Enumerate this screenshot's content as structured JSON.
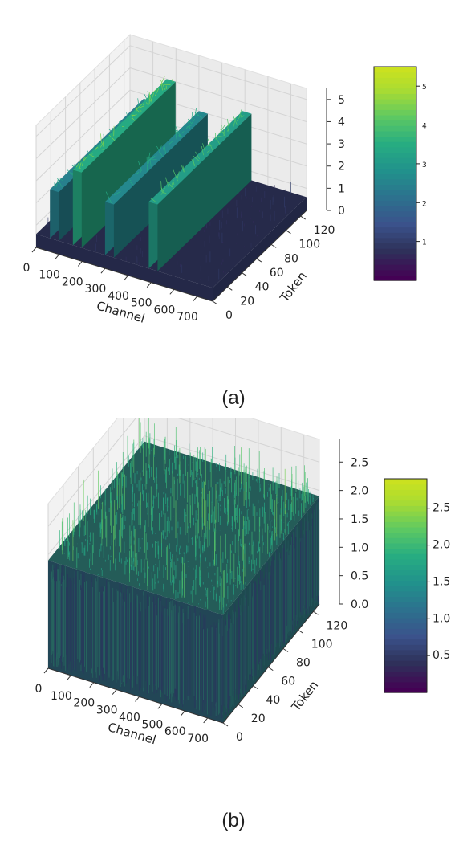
{
  "chart_data": [
    {
      "type": "surface3d",
      "caption": "(a)",
      "xlabel": "Channel",
      "ylabel": "Token",
      "x_ticks": [
        "0",
        "100",
        "200",
        "300",
        "400",
        "500",
        "600",
        "700"
      ],
      "y_ticks": [
        "0",
        "20",
        "40",
        "60",
        "80",
        "100",
        "120"
      ],
      "z_ticks": [
        "0",
        "1",
        "2",
        "3",
        "4",
        "5"
      ],
      "colorbar_ticks": [
        "1",
        "2",
        "3",
        "4",
        "5"
      ],
      "xlim": [
        0,
        768
      ],
      "ylim": [
        0,
        128
      ],
      "zlim": [
        0,
        5.5
      ],
      "colorbar_range": [
        0,
        5.5
      ],
      "colormap": "viridis",
      "base_level": 0.6,
      "outlier_channels": [
        {
          "channel": 60,
          "level": 2.8
        },
        {
          "channel": 160,
          "level": 4.0
        },
        {
          "channel": 300,
          "level": 3.0
        },
        {
          "channel": 490,
          "level": 3.6
        }
      ]
    },
    {
      "type": "surface3d",
      "caption": "(b)",
      "xlabel": "Channel",
      "ylabel": "Token",
      "x_ticks": [
        "0",
        "100",
        "200",
        "300",
        "400",
        "500",
        "600",
        "700"
      ],
      "y_ticks": [
        "0",
        "20",
        "40",
        "60",
        "80",
        "100",
        "120"
      ],
      "z_ticks": [
        "0.0",
        "0.5",
        "1.0",
        "1.5",
        "2.0",
        "2.5"
      ],
      "colorbar_ticks": [
        "0.5",
        "1.0",
        "1.5",
        "2.0",
        "2.5"
      ],
      "xlim": [
        0,
        768
      ],
      "ylim": [
        0,
        128
      ],
      "zlim": [
        0,
        2.9
      ],
      "colorbar_range": [
        0,
        2.9
      ],
      "colormap": "viridis",
      "base_level": 1.9,
      "outlier_channels": []
    }
  ]
}
